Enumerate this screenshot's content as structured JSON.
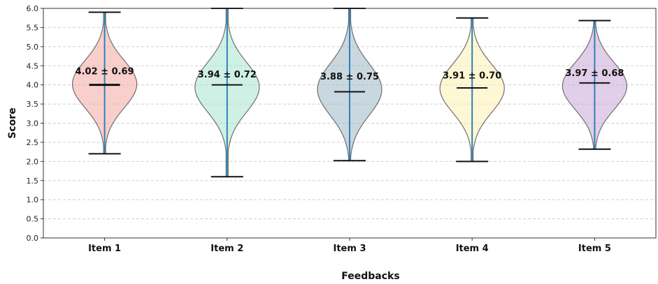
{
  "chart_data": {
    "type": "violin",
    "title": "",
    "xlabel": "Feedbacks",
    "ylabel": "Score",
    "ylim": [
      0.0,
      6.0
    ],
    "yticks": [
      "0.0",
      "0.5",
      "1.0",
      "1.5",
      "2.0",
      "2.5",
      "3.0",
      "3.5",
      "4.0",
      "4.5",
      "5.0",
      "5.5",
      "6.0"
    ],
    "grid": "horizontal dashed",
    "categories": [
      "Item 1",
      "Item 2",
      "Item 3",
      "Item 4",
      "Item 5"
    ],
    "series": [
      {
        "category": "Item 1",
        "min": 2.2,
        "max": 5.9,
        "median": 4.0,
        "mean": 4.02,
        "sd": 0.69,
        "annotation": "4.02 ± 0.69",
        "color": "#f4a7a3"
      },
      {
        "category": "Item 2",
        "min": 1.6,
        "max": 6.0,
        "median": 4.0,
        "mean": 3.94,
        "sd": 0.72,
        "annotation": "3.94 ± 0.72",
        "color": "#a8e6cf"
      },
      {
        "category": "Item 3",
        "min": 2.02,
        "max": 6.0,
        "median": 3.82,
        "mean": 3.88,
        "sd": 0.75,
        "annotation": "3.88 ± 0.75",
        "color": "#9db7c4"
      },
      {
        "category": "Item 4",
        "min": 2.0,
        "max": 5.75,
        "median": 3.92,
        "mean": 3.91,
        "sd": 0.7,
        "annotation": "3.91 ± 0.70",
        "color": "#fdf0b0"
      },
      {
        "category": "Item 5",
        "min": 2.32,
        "max": 5.68,
        "median": 4.05,
        "mean": 3.97,
        "sd": 0.68,
        "annotation": "3.97 ± 0.68",
        "color": "#c9a6d6"
      }
    ]
  }
}
